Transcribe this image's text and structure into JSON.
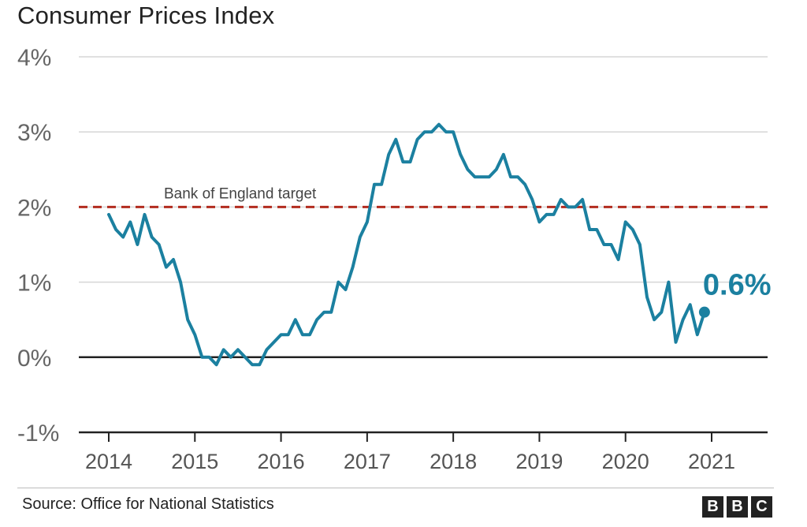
{
  "chart_data": {
    "type": "line",
    "title": "Consumer Prices Index",
    "ylim": [
      -1,
      4
    ],
    "yticks": [
      "4%",
      "3%",
      "2%",
      "1%",
      "0%",
      "-1%"
    ],
    "ytick_values": [
      4,
      3,
      2,
      1,
      0,
      -1
    ],
    "xticks": [
      "2014",
      "2015",
      "2016",
      "2017",
      "2018",
      "2019",
      "2020",
      "2021"
    ],
    "xtick_values": [
      2014,
      2015,
      2016,
      2017,
      2018,
      2019,
      2020,
      2021
    ],
    "grid": true,
    "reference_line": {
      "label": "Bank of England target",
      "value": 2,
      "color": "#b22c1f"
    },
    "end_label": "0.6%",
    "colors": {
      "series": "#1b80a0",
      "target": "#b22c1f",
      "grid": "#d6d6d6",
      "axis": "#222222"
    },
    "series": [
      {
        "values": [
          {
            "x": "2014-01",
            "y": 1.9
          },
          {
            "x": "2014-02",
            "y": 1.7
          },
          {
            "x": "2014-03",
            "y": 1.6
          },
          {
            "x": "2014-04",
            "y": 1.8
          },
          {
            "x": "2014-05",
            "y": 1.5
          },
          {
            "x": "2014-06",
            "y": 1.9
          },
          {
            "x": "2014-07",
            "y": 1.6
          },
          {
            "x": "2014-08",
            "y": 1.5
          },
          {
            "x": "2014-09",
            "y": 1.2
          },
          {
            "x": "2014-10",
            "y": 1.3
          },
          {
            "x": "2014-11",
            "y": 1.0
          },
          {
            "x": "2014-12",
            "y": 0.5
          },
          {
            "x": "2015-01",
            "y": 0.3
          },
          {
            "x": "2015-02",
            "y": 0.0
          },
          {
            "x": "2015-03",
            "y": 0.0
          },
          {
            "x": "2015-04",
            "y": -0.1
          },
          {
            "x": "2015-05",
            "y": 0.1
          },
          {
            "x": "2015-06",
            "y": 0.0
          },
          {
            "x": "2015-07",
            "y": 0.1
          },
          {
            "x": "2015-08",
            "y": 0.0
          },
          {
            "x": "2015-09",
            "y": -0.1
          },
          {
            "x": "2015-10",
            "y": -0.1
          },
          {
            "x": "2015-11",
            "y": 0.1
          },
          {
            "x": "2015-12",
            "y": 0.2
          },
          {
            "x": "2016-01",
            "y": 0.3
          },
          {
            "x": "2016-02",
            "y": 0.3
          },
          {
            "x": "2016-03",
            "y": 0.5
          },
          {
            "x": "2016-04",
            "y": 0.3
          },
          {
            "x": "2016-05",
            "y": 0.3
          },
          {
            "x": "2016-06",
            "y": 0.5
          },
          {
            "x": "2016-07",
            "y": 0.6
          },
          {
            "x": "2016-08",
            "y": 0.6
          },
          {
            "x": "2016-09",
            "y": 1.0
          },
          {
            "x": "2016-10",
            "y": 0.9
          },
          {
            "x": "2016-11",
            "y": 1.2
          },
          {
            "x": "2016-12",
            "y": 1.6
          },
          {
            "x": "2017-01",
            "y": 1.8
          },
          {
            "x": "2017-02",
            "y": 2.3
          },
          {
            "x": "2017-03",
            "y": 2.3
          },
          {
            "x": "2017-04",
            "y": 2.7
          },
          {
            "x": "2017-05",
            "y": 2.9
          },
          {
            "x": "2017-06",
            "y": 2.6
          },
          {
            "x": "2017-07",
            "y": 2.6
          },
          {
            "x": "2017-08",
            "y": 2.9
          },
          {
            "x": "2017-09",
            "y": 3.0
          },
          {
            "x": "2017-10",
            "y": 3.0
          },
          {
            "x": "2017-11",
            "y": 3.1
          },
          {
            "x": "2017-12",
            "y": 3.0
          },
          {
            "x": "2018-01",
            "y": 3.0
          },
          {
            "x": "2018-02",
            "y": 2.7
          },
          {
            "x": "2018-03",
            "y": 2.5
          },
          {
            "x": "2018-04",
            "y": 2.4
          },
          {
            "x": "2018-05",
            "y": 2.4
          },
          {
            "x": "2018-06",
            "y": 2.4
          },
          {
            "x": "2018-07",
            "y": 2.5
          },
          {
            "x": "2018-08",
            "y": 2.7
          },
          {
            "x": "2018-09",
            "y": 2.4
          },
          {
            "x": "2018-10",
            "y": 2.4
          },
          {
            "x": "2018-11",
            "y": 2.3
          },
          {
            "x": "2018-12",
            "y": 2.1
          },
          {
            "x": "2019-01",
            "y": 1.8
          },
          {
            "x": "2019-02",
            "y": 1.9
          },
          {
            "x": "2019-03",
            "y": 1.9
          },
          {
            "x": "2019-04",
            "y": 2.1
          },
          {
            "x": "2019-05",
            "y": 2.0
          },
          {
            "x": "2019-06",
            "y": 2.0
          },
          {
            "x": "2019-07",
            "y": 2.1
          },
          {
            "x": "2019-08",
            "y": 1.7
          },
          {
            "x": "2019-09",
            "y": 1.7
          },
          {
            "x": "2019-10",
            "y": 1.5
          },
          {
            "x": "2019-11",
            "y": 1.5
          },
          {
            "x": "2019-12",
            "y": 1.3
          },
          {
            "x": "2020-01",
            "y": 1.8
          },
          {
            "x": "2020-02",
            "y": 1.7
          },
          {
            "x": "2020-03",
            "y": 1.5
          },
          {
            "x": "2020-04",
            "y": 0.8
          },
          {
            "x": "2020-05",
            "y": 0.5
          },
          {
            "x": "2020-06",
            "y": 0.6
          },
          {
            "x": "2020-07",
            "y": 1.0
          },
          {
            "x": "2020-08",
            "y": 0.2
          },
          {
            "x": "2020-09",
            "y": 0.5
          },
          {
            "x": "2020-10",
            "y": 0.7
          },
          {
            "x": "2020-11",
            "y": 0.3
          },
          {
            "x": "2020-12",
            "y": 0.6
          }
        ]
      }
    ]
  },
  "footer": {
    "source": "Source: Office for National Statistics",
    "logo_letters": [
      "B",
      "B",
      "C"
    ]
  }
}
